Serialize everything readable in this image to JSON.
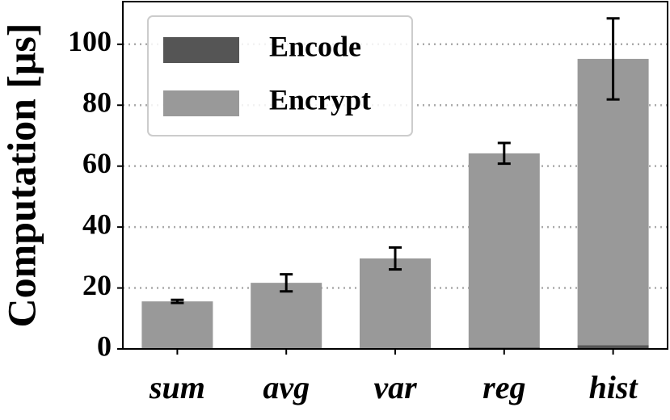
{
  "chart_data": {
    "type": "stacked-bar",
    "ylabel": "Computation [μs]",
    "categories": [
      "sum",
      "avg",
      "var",
      "reg",
      "hist"
    ],
    "series": [
      {
        "name": "Encode",
        "color": "#555555",
        "values": [
          0.2,
          0.2,
          0.2,
          0.5,
          1.2
        ]
      },
      {
        "name": "Encrypt",
        "color": "#999999",
        "values": [
          15.4,
          21.5,
          29.5,
          63.7,
          94.0
        ],
        "errors": [
          0.5,
          2.8,
          3.6,
          3.4,
          13.3
        ]
      }
    ],
    "ylim": [
      0,
      114
    ],
    "yticks": [
      0,
      20,
      40,
      60,
      80,
      100
    ],
    "grid": true,
    "legend": "upper left"
  }
}
